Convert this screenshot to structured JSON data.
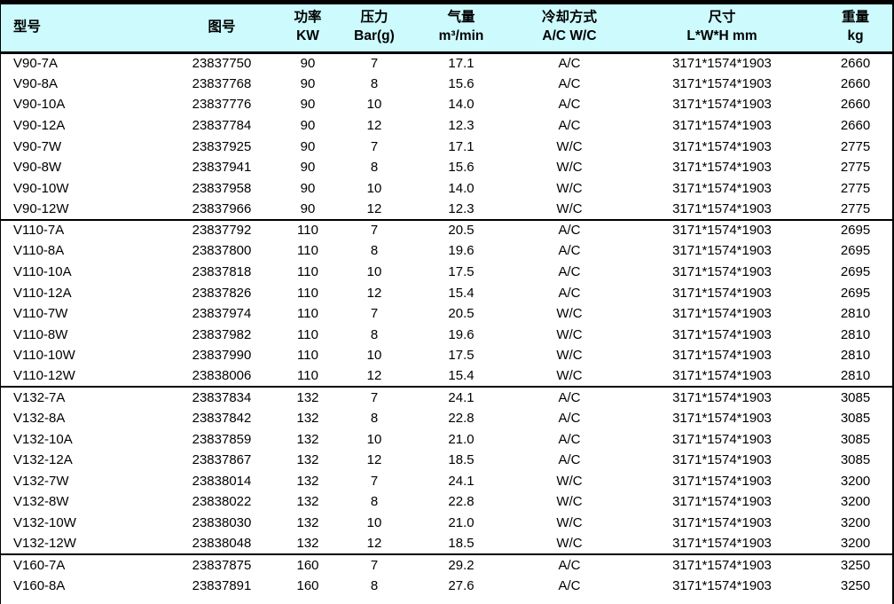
{
  "colors": {
    "header_bg": "#cdfbfd",
    "border": "#000000",
    "text": "#000000"
  },
  "table": {
    "columns": [
      {
        "key": "model",
        "line1": "型号",
        "line2": ""
      },
      {
        "key": "drawing",
        "line1": "图号",
        "line2": ""
      },
      {
        "key": "power",
        "line1": "功率",
        "line2": "KW"
      },
      {
        "key": "pressure",
        "line1": "压力",
        "line2": "Bar(g)"
      },
      {
        "key": "flow",
        "line1": "气量",
        "line2": "m³/min"
      },
      {
        "key": "cooling",
        "line1": "冷却方式",
        "line2": "A/C W/C"
      },
      {
        "key": "dims",
        "line1": "尺寸",
        "line2": "L*W*H mm"
      },
      {
        "key": "weight",
        "line1": "重量",
        "line2": "kg"
      }
    ],
    "groups": [
      {
        "name": "V90",
        "rows": [
          [
            "V90-7A",
            "23837750",
            "90",
            "7",
            "17.1",
            "A/C",
            "3171*1574*1903",
            "2660"
          ],
          [
            "V90-8A",
            "23837768",
            "90",
            "8",
            "15.6",
            "A/C",
            "3171*1574*1903",
            "2660"
          ],
          [
            "V90-10A",
            "23837776",
            "90",
            "10",
            "14.0",
            "A/C",
            "3171*1574*1903",
            "2660"
          ],
          [
            "V90-12A",
            "23837784",
            "90",
            "12",
            "12.3",
            "A/C",
            "3171*1574*1903",
            "2660"
          ],
          [
            "V90-7W",
            "23837925",
            "90",
            "7",
            "17.1",
            "W/C",
            "3171*1574*1903",
            "2775"
          ],
          [
            "V90-8W",
            "23837941",
            "90",
            "8",
            "15.6",
            "W/C",
            "3171*1574*1903",
            "2775"
          ],
          [
            "V90-10W",
            "23837958",
            "90",
            "10",
            "14.0",
            "W/C",
            "3171*1574*1903",
            "2775"
          ],
          [
            "V90-12W",
            "23837966",
            "90",
            "12",
            "12.3",
            "W/C",
            "3171*1574*1903",
            "2775"
          ]
        ]
      },
      {
        "name": "V110",
        "rows": [
          [
            "V110-7A",
            "23837792",
            "110",
            "7",
            "20.5",
            "A/C",
            "3171*1574*1903",
            "2695"
          ],
          [
            "V110-8A",
            "23837800",
            "110",
            "8",
            "19.6",
            "A/C",
            "3171*1574*1903",
            "2695"
          ],
          [
            "V110-10A",
            "23837818",
            "110",
            "10",
            "17.5",
            "A/C",
            "3171*1574*1903",
            "2695"
          ],
          [
            "V110-12A",
            "23837826",
            "110",
            "12",
            "15.4",
            "A/C",
            "3171*1574*1903",
            "2695"
          ],
          [
            "V110-7W",
            "23837974",
            "110",
            "7",
            "20.5",
            "W/C",
            "3171*1574*1903",
            "2810"
          ],
          [
            "V110-8W",
            "23837982",
            "110",
            "8",
            "19.6",
            "W/C",
            "3171*1574*1903",
            "2810"
          ],
          [
            "V110-10W",
            "23837990",
            "110",
            "10",
            "17.5",
            "W/C",
            "3171*1574*1903",
            "2810"
          ],
          [
            "V110-12W",
            "23838006",
            "110",
            "12",
            "15.4",
            "W/C",
            "3171*1574*1903",
            "2810"
          ]
        ]
      },
      {
        "name": "V132",
        "rows": [
          [
            "V132-7A",
            "23837834",
            "132",
            "7",
            "24.1",
            "A/C",
            "3171*1574*1903",
            "3085"
          ],
          [
            "V132-8A",
            "23837842",
            "132",
            "8",
            "22.8",
            "A/C",
            "3171*1574*1903",
            "3085"
          ],
          [
            "V132-10A",
            "23837859",
            "132",
            "10",
            "21.0",
            "A/C",
            "3171*1574*1903",
            "3085"
          ],
          [
            "V132-12A",
            "23837867",
            "132",
            "12",
            "18.5",
            "A/C",
            "3171*1574*1903",
            "3085"
          ],
          [
            "V132-7W",
            "23838014",
            "132",
            "7",
            "24.1",
            "W/C",
            "3171*1574*1903",
            "3200"
          ],
          [
            "V132-8W",
            "23838022",
            "132",
            "8",
            "22.8",
            "W/C",
            "3171*1574*1903",
            "3200"
          ],
          [
            "V132-10W",
            "23838030",
            "132",
            "10",
            "21.0",
            "W/C",
            "3171*1574*1903",
            "3200"
          ],
          [
            "V132-12W",
            "23838048",
            "132",
            "12",
            "18.5",
            "W/C",
            "3171*1574*1903",
            "3200"
          ]
        ]
      },
      {
        "name": "V160",
        "rows": [
          [
            "V160-7A",
            "23837875",
            "160",
            "7",
            "29.2",
            "A/C",
            "3171*1574*1903",
            "3250"
          ],
          [
            "V160-8A",
            "23837891",
            "160",
            "8",
            "27.6",
            "A/C",
            "3171*1574*1903",
            "3250"
          ]
        ]
      }
    ]
  }
}
